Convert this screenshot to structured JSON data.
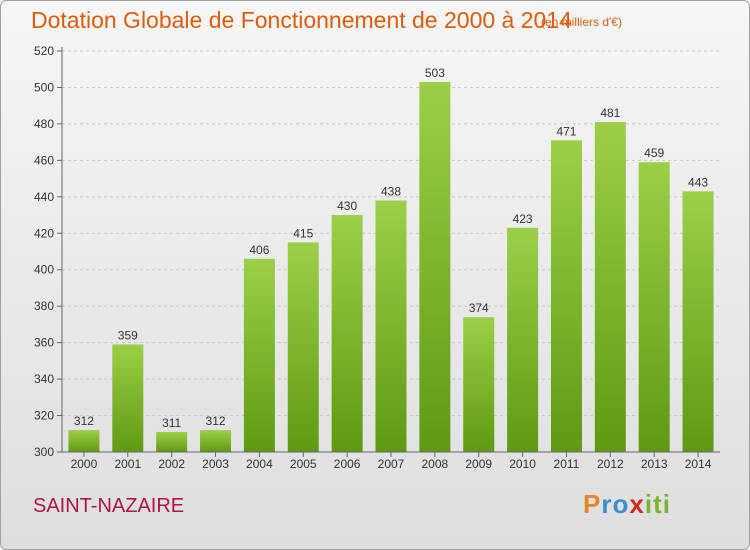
{
  "header": {
    "title": "Dotation Globale de Fonctionnement de 2000 à 2014",
    "subtitle": "(en milliers d'€)"
  },
  "footer": {
    "place": "SAINT-NAZAIRE",
    "logo_text": "Proxiti"
  },
  "colors": {
    "bar_top": "#9ccf48",
    "bar_bottom": "#5f9a12",
    "title": "#e05c0c",
    "place": "#b0134a"
  },
  "chart_data": {
    "type": "bar",
    "title": "Dotation Globale de Fonctionnement de 2000 à 2014",
    "subtitle": "(en milliers d'€)",
    "categories": [
      "2000",
      "2001",
      "2002",
      "2003",
      "2004",
      "2005",
      "2006",
      "2007",
      "2008",
      "2009",
      "2010",
      "2011",
      "2012",
      "2013",
      "2014"
    ],
    "values": [
      312,
      359,
      311,
      312,
      406,
      415,
      430,
      438,
      503,
      374,
      423,
      471,
      481,
      459,
      443
    ],
    "ylim": [
      300,
      520
    ],
    "yticks": [
      300,
      320,
      340,
      360,
      380,
      400,
      420,
      440,
      460,
      480,
      500,
      520
    ],
    "grid": "horizontal dashed",
    "data_labels": true
  }
}
